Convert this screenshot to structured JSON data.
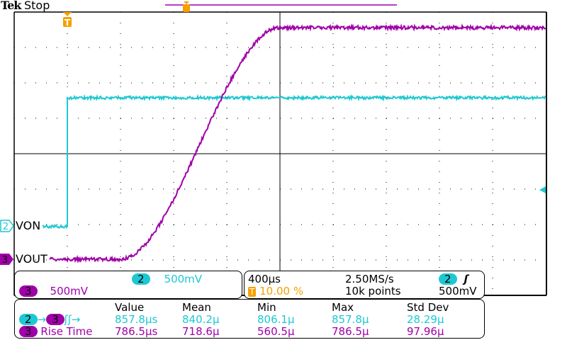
{
  "header": {
    "brand": "Tek",
    "status": "Stop"
  },
  "colors": {
    "ch2": "#1ec8d2",
    "ch3": "#a000a8",
    "trigger": "#f5a000"
  },
  "channels": [
    {
      "num": "2",
      "label": "VON",
      "scale": "500mV"
    },
    {
      "num": "3",
      "label": "VOUT",
      "scale": "500mV"
    }
  ],
  "timebase": {
    "scale": "400µs",
    "sample_rate": "2.50MS/s",
    "trigger_pos": "10.00 %",
    "record": "10k points",
    "trigger_source": "2",
    "trigger_slope": "rising-edge-icon",
    "trigger_level": "500mV"
  },
  "measurements": {
    "headers": [
      "Value",
      "Mean",
      "Min",
      "Max",
      "Std Dev"
    ],
    "rows": [
      {
        "label": "",
        "src": "2",
        "dst": "3",
        "values": [
          "857.8µs",
          "840.2µ",
          "806.1µ",
          "857.8µ",
          "28.29µ"
        ]
      },
      {
        "label": "Rise Time",
        "src": "3",
        "values": [
          "786.5µs",
          "718.6µ",
          "560.5µ",
          "786.5µ",
          "97.96µ"
        ]
      }
    ]
  }
}
